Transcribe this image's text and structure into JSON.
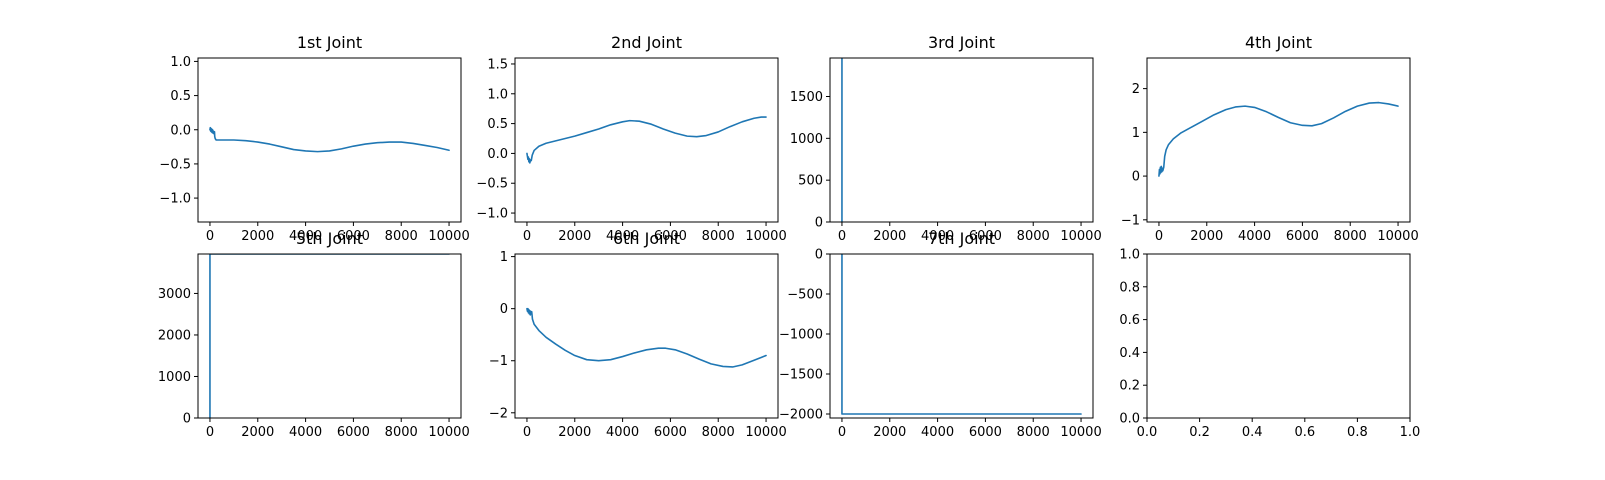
{
  "chart_data": [
    {
      "type": "line",
      "title": "1st Joint",
      "xlim": [
        -500,
        10500
      ],
      "ylim": [
        -1.35,
        1.05
      ],
      "xticks": [
        0,
        2000,
        4000,
        6000,
        8000,
        10000
      ],
      "xtick_labels": [
        "0",
        "2000",
        "4000",
        "6000",
        "8000",
        "10000"
      ],
      "yticks": [
        -1.0,
        -0.5,
        0.0,
        0.5,
        1.0
      ],
      "ytick_labels": [
        "−1.0",
        "−0.5",
        "0.0",
        "0.5",
        "1.0"
      ],
      "series": [
        {
          "color": "#1f77b4",
          "x": [
            0,
            15,
            30,
            45,
            60,
            75,
            90,
            110,
            130,
            150,
            170,
            190,
            200,
            220,
            260,
            400,
            700,
            1000,
            1500,
            2000,
            2500,
            3000,
            3500,
            4000,
            4500,
            5000,
            5500,
            6000,
            6500,
            7000,
            7500,
            8000,
            8500,
            9000,
            9500,
            10000
          ],
          "y": [
            0.0,
            0.03,
            -0.02,
            0.02,
            -0.03,
            0.01,
            -0.04,
            0.0,
            -0.05,
            -0.02,
            -0.06,
            -0.03,
            -0.1,
            -0.13,
            -0.15,
            -0.15,
            -0.15,
            -0.15,
            -0.16,
            -0.18,
            -0.21,
            -0.25,
            -0.29,
            -0.31,
            -0.32,
            -0.31,
            -0.28,
            -0.24,
            -0.21,
            -0.19,
            -0.18,
            -0.18,
            -0.2,
            -0.23,
            -0.26,
            -0.3
          ]
        }
      ]
    },
    {
      "type": "line",
      "title": "2nd Joint",
      "xlim": [
        -500,
        10500
      ],
      "ylim": [
        -1.15,
        1.6
      ],
      "xticks": [
        0,
        2000,
        4000,
        6000,
        8000,
        10000
      ],
      "xtick_labels": [
        "0",
        "2000",
        "4000",
        "6000",
        "8000",
        "10000"
      ],
      "yticks": [
        -1.0,
        -0.5,
        0.0,
        0.5,
        1.0,
        1.5
      ],
      "ytick_labels": [
        "−1.0",
        "−0.5",
        "0.0",
        "0.5",
        "1.0",
        "1.5"
      ],
      "series": [
        {
          "color": "#1f77b4",
          "x": [
            0,
            20,
            40,
            60,
            80,
            100,
            120,
            150,
            180,
            220,
            300,
            500,
            800,
            1200,
            1600,
            2000,
            2500,
            3000,
            3500,
            4000,
            4300,
            4700,
            5200,
            5700,
            6200,
            6700,
            7100,
            7500,
            8000,
            8500,
            9000,
            9500,
            9800,
            10000
          ],
          "y": [
            0.0,
            -0.05,
            -0.1,
            -0.06,
            -0.14,
            -0.09,
            -0.16,
            -0.11,
            -0.12,
            -0.03,
            0.05,
            0.12,
            0.17,
            0.21,
            0.25,
            0.29,
            0.35,
            0.41,
            0.48,
            0.53,
            0.55,
            0.54,
            0.49,
            0.41,
            0.34,
            0.29,
            0.28,
            0.3,
            0.36,
            0.45,
            0.53,
            0.59,
            0.61,
            0.61
          ]
        }
      ]
    },
    {
      "type": "line",
      "title": "3rd Joint",
      "xlim": [
        -500,
        10500
      ],
      "ylim": [
        0,
        1960
      ],
      "xticks": [
        0,
        2000,
        4000,
        6000,
        8000,
        10000
      ],
      "xtick_labels": [
        "0",
        "2000",
        "4000",
        "6000",
        "8000",
        "10000"
      ],
      "yticks": [
        0,
        500,
        1000,
        1500
      ],
      "ytick_labels": [
        "0",
        "500",
        "1000",
        "1500"
      ],
      "series": [
        {
          "color": "#1f77b4",
          "x": [
            0,
            0,
            0,
            0
          ],
          "y": [
            0,
            1960,
            1960,
            0
          ]
        }
      ]
    },
    {
      "type": "line",
      "title": "4th Joint",
      "xlim": [
        -500,
        10500
      ],
      "ylim": [
        -1.05,
        2.7
      ],
      "xticks": [
        0,
        2000,
        4000,
        6000,
        8000,
        10000
      ],
      "xtick_labels": [
        "0",
        "2000",
        "4000",
        "6000",
        "8000",
        "10000"
      ],
      "yticks": [
        -1,
        0,
        1,
        2
      ],
      "ytick_labels": [
        "−1",
        "0",
        "1",
        "2"
      ],
      "series": [
        {
          "color": "#1f77b4",
          "x": [
            0,
            20,
            40,
            60,
            80,
            100,
            120,
            140,
            160,
            180,
            200,
            240,
            300,
            400,
            600,
            900,
            1300,
            1800,
            2300,
            2800,
            3200,
            3600,
            4000,
            4500,
            5000,
            5500,
            6000,
            6400,
            6800,
            7300,
            7800,
            8300,
            8800,
            9200,
            9600,
            10000
          ],
          "y": [
            0.0,
            0.15,
            0.05,
            0.2,
            0.08,
            0.22,
            0.1,
            0.18,
            0.12,
            0.16,
            0.2,
            0.45,
            0.6,
            0.72,
            0.85,
            0.98,
            1.1,
            1.25,
            1.4,
            1.52,
            1.58,
            1.6,
            1.57,
            1.47,
            1.34,
            1.22,
            1.16,
            1.15,
            1.2,
            1.33,
            1.48,
            1.6,
            1.67,
            1.68,
            1.65,
            1.6
          ]
        }
      ]
    },
    {
      "type": "line",
      "title": "5th Joint",
      "xlim": [
        -500,
        10500
      ],
      "ylim": [
        0,
        3950
      ],
      "xticks": [
        0,
        2000,
        4000,
        6000,
        8000,
        10000
      ],
      "xtick_labels": [
        "0",
        "2000",
        "4000",
        "6000",
        "8000",
        "10000"
      ],
      "yticks": [
        0,
        1000,
        2000,
        3000
      ],
      "ytick_labels": [
        "0",
        "1000",
        "2000",
        "3000"
      ],
      "series": [
        {
          "color": "#1f77b4",
          "x": [
            0,
            0,
            0,
            10000
          ],
          "y": [
            0,
            3950,
            3950,
            3950
          ]
        }
      ]
    },
    {
      "type": "line",
      "title": "6th Joint",
      "xlim": [
        -500,
        10500
      ],
      "ylim": [
        -2.1,
        1.05
      ],
      "xticks": [
        0,
        2000,
        4000,
        6000,
        8000,
        10000
      ],
      "xtick_labels": [
        "0",
        "2000",
        "4000",
        "6000",
        "8000",
        "10000"
      ],
      "yticks": [
        -2,
        -1,
        0,
        1
      ],
      "ytick_labels": [
        "−2",
        "−1",
        "0",
        "1"
      ],
      "series": [
        {
          "color": "#1f77b4",
          "x": [
            0,
            20,
            40,
            60,
            80,
            100,
            120,
            140,
            160,
            180,
            200,
            230,
            300,
            500,
            800,
            1200,
            1600,
            2000,
            2500,
            3000,
            3500,
            4000,
            4500,
            5000,
            5500,
            5800,
            6200,
            6700,
            7200,
            7700,
            8200,
            8600,
            9000,
            9500,
            10000
          ],
          "y": [
            0.0,
            -0.05,
            0.0,
            -0.08,
            -0.02,
            -0.1,
            -0.04,
            -0.12,
            -0.05,
            -0.1,
            -0.06,
            -0.2,
            -0.3,
            -0.42,
            -0.55,
            -0.68,
            -0.8,
            -0.9,
            -0.98,
            -1.0,
            -0.98,
            -0.92,
            -0.85,
            -0.79,
            -0.76,
            -0.76,
            -0.79,
            -0.87,
            -0.97,
            -1.06,
            -1.11,
            -1.12,
            -1.08,
            -0.99,
            -0.9
          ]
        }
      ]
    },
    {
      "type": "line",
      "title": "7th Joint",
      "xlim": [
        -500,
        10500
      ],
      "ylim": [
        -2050,
        0
      ],
      "xticks": [
        0,
        2000,
        4000,
        6000,
        8000,
        10000
      ],
      "xtick_labels": [
        "0",
        "2000",
        "4000",
        "6000",
        "8000",
        "10000"
      ],
      "yticks": [
        -2000,
        -1500,
        -1000,
        -500,
        0
      ],
      "ytick_labels": [
        "−2000",
        "−1500",
        "−1000",
        "−500",
        "0"
      ],
      "series": [
        {
          "color": "#1f77b4",
          "x": [
            0,
            0,
            0,
            10000
          ],
          "y": [
            0,
            -2000,
            -2000,
            -2000
          ]
        }
      ]
    },
    {
      "type": "line",
      "title": "",
      "xlim": [
        0,
        1
      ],
      "ylim": [
        0,
        1
      ],
      "xticks": [
        0,
        0.2,
        0.4,
        0.6,
        0.8,
        1.0
      ],
      "xtick_labels": [
        "0.0",
        "0.2",
        "0.4",
        "0.6",
        "0.8",
        "1.0"
      ],
      "yticks": [
        0,
        0.2,
        0.4,
        0.6,
        0.8,
        1.0
      ],
      "ytick_labels": [
        "0.0",
        "0.2",
        "0.4",
        "0.6",
        "0.8",
        "1.0"
      ],
      "series": []
    }
  ]
}
